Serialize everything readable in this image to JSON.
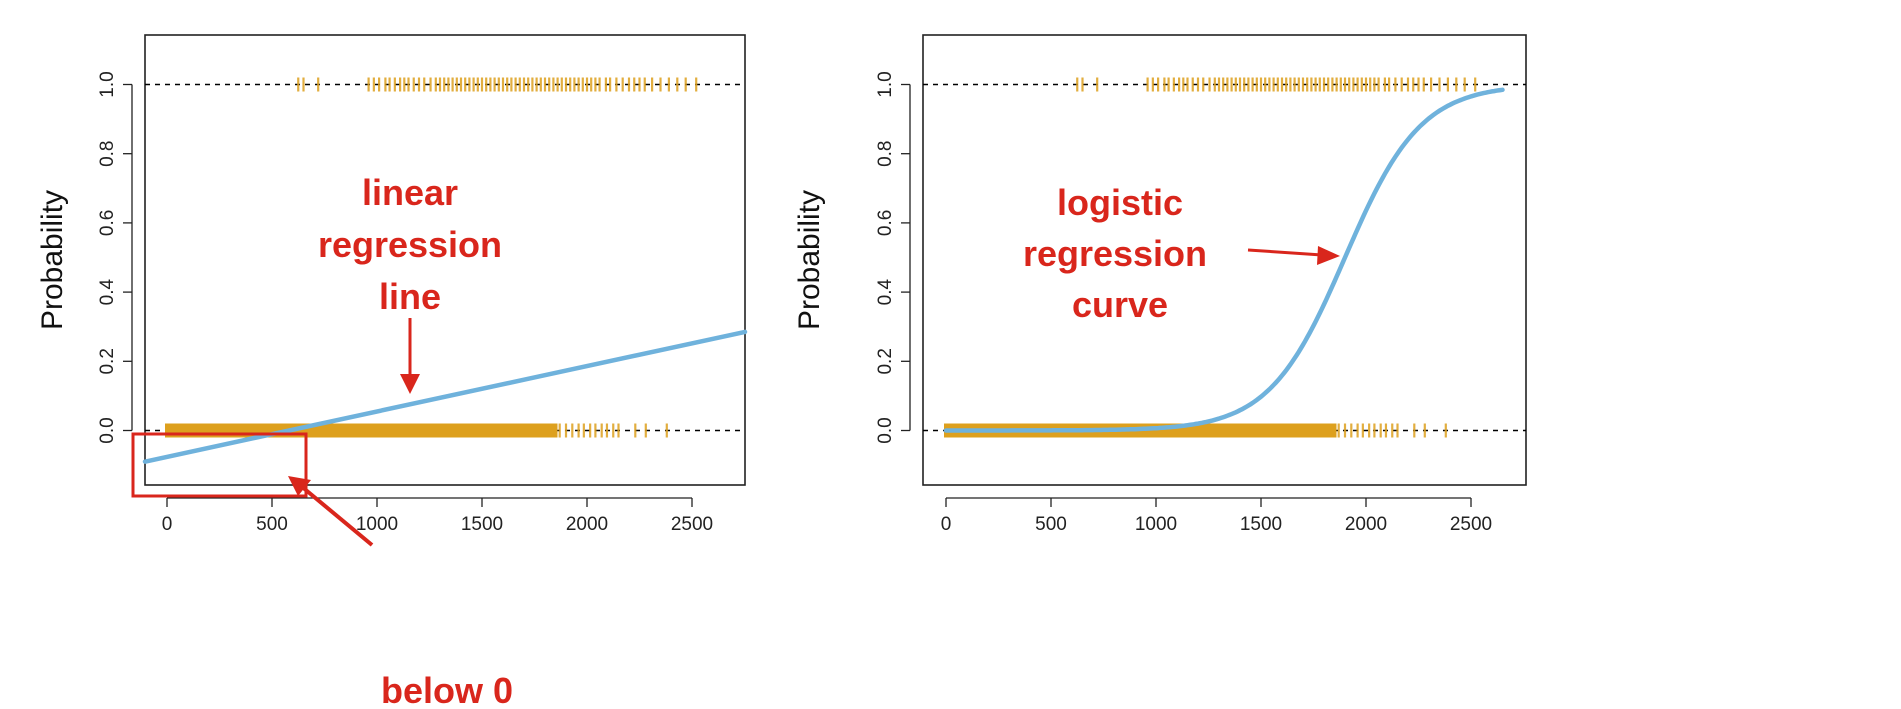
{
  "colors": {
    "curve": "#6fb2dc",
    "points": "#dda01e",
    "annotation": "#d9261c",
    "axis": "#222222",
    "refline": "#000000"
  },
  "chart_data": [
    {
      "type": "scatter",
      "title": "",
      "xlabel": "",
      "ylabel": "Probability",
      "xlim": [
        -120,
        2750
      ],
      "ylim": [
        -0.19,
        1.14
      ],
      "x_ticks": [
        "0",
        "500",
        "1000",
        "1500",
        "2000",
        "2500"
      ],
      "y_ticks": [
        "0.0",
        "0.2",
        "0.4",
        "0.6",
        "0.8",
        "1.0"
      ],
      "reference_lines_y": [
        0,
        1
      ],
      "grid": false,
      "fit": {
        "kind": "linear",
        "x": [
          -120,
          2750
        ],
        "y": [
          -0.09,
          0.285
        ]
      },
      "points_y1": [
        625,
        650,
        720,
        960,
        985,
        1010,
        1040,
        1060,
        1085,
        1110,
        1130,
        1150,
        1175,
        1200,
        1225,
        1255,
        1280,
        1300,
        1320,
        1340,
        1360,
        1380,
        1400,
        1420,
        1440,
        1460,
        1480,
        1500,
        1520,
        1540,
        1560,
        1580,
        1600,
        1620,
        1640,
        1660,
        1680,
        1700,
        1720,
        1740,
        1760,
        1780,
        1800,
        1820,
        1840,
        1860,
        1880,
        1900,
        1920,
        1940,
        1960,
        1980,
        2000,
        2020,
        2040,
        2060,
        2090,
        2110,
        2140,
        2170,
        2200,
        2225,
        2250,
        2275,
        2310,
        2350,
        2390,
        2430,
        2470,
        2520
      ],
      "points_y0_dense_range": [
        0,
        1850
      ],
      "points_y0_sparse": [
        1870,
        1900,
        1930,
        1960,
        1985,
        2015,
        2040,
        2070,
        2095,
        2125,
        2150,
        2230,
        2280,
        2380
      ],
      "annotations": [
        {
          "lines": [
            "linear",
            "regression",
            "line"
          ]
        },
        {
          "lines": [
            "below 0"
          ]
        }
      ]
    },
    {
      "type": "scatter",
      "title": "",
      "xlabel": "",
      "ylabel": "Probability",
      "xlim": [
        -120,
        2750
      ],
      "ylim": [
        -0.19,
        1.14
      ],
      "x_ticks": [
        "0",
        "500",
        "1000",
        "1500",
        "2000",
        "2500"
      ],
      "y_ticks": [
        "0.0",
        "0.2",
        "0.4",
        "0.6",
        "0.8",
        "1.0"
      ],
      "reference_lines_y": [
        0,
        1
      ],
      "grid": false,
      "fit": {
        "kind": "logistic",
        "midpoint": 1900,
        "scale": 180,
        "x_range": [
          0,
          2650
        ]
      },
      "points_y1": [
        625,
        650,
        720,
        960,
        985,
        1010,
        1040,
        1060,
        1085,
        1110,
        1130,
        1150,
        1175,
        1200,
        1225,
        1255,
        1280,
        1300,
        1320,
        1340,
        1360,
        1380,
        1400,
        1420,
        1440,
        1460,
        1480,
        1500,
        1520,
        1540,
        1560,
        1580,
        1600,
        1620,
        1640,
        1660,
        1680,
        1700,
        1720,
        1740,
        1760,
        1780,
        1800,
        1820,
        1840,
        1860,
        1880,
        1900,
        1920,
        1940,
        1960,
        1980,
        2000,
        2020,
        2040,
        2060,
        2090,
        2110,
        2140,
        2170,
        2200,
        2225,
        2250,
        2275,
        2310,
        2350,
        2390,
        2430,
        2470,
        2520
      ],
      "points_y0_dense_range": [
        0,
        1850
      ],
      "points_y0_sparse": [
        1870,
        1900,
        1930,
        1960,
        1985,
        2015,
        2040,
        2070,
        2095,
        2125,
        2150,
        2230,
        2280,
        2380
      ],
      "annotations": [
        {
          "lines": [
            "logistic",
            "regression",
            "curve"
          ]
        }
      ]
    }
  ]
}
